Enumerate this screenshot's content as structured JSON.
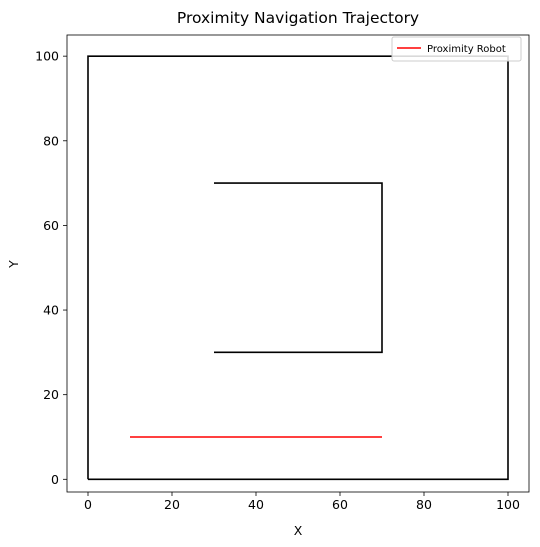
{
  "chart_data": {
    "type": "line",
    "title": "Proximity Navigation Trajectory",
    "xlabel": "X",
    "ylabel": "Y",
    "xlim": [
      -5,
      105
    ],
    "ylim": [
      -3,
      105
    ],
    "xticks": [
      0,
      20,
      40,
      60,
      80,
      100
    ],
    "yticks": [
      0,
      20,
      40,
      60,
      80,
      100
    ],
    "grid": false,
    "legend_position": "top-right",
    "obstacles": [
      {
        "color": "#000000",
        "points": [
          [
            0,
            0
          ],
          [
            100,
            0
          ],
          [
            100,
            100
          ],
          [
            0,
            100
          ],
          [
            0,
            0
          ]
        ]
      },
      {
        "color": "#000000",
        "points": [
          [
            30,
            70
          ],
          [
            70,
            70
          ],
          [
            70,
            30
          ],
          [
            30,
            30
          ]
        ]
      }
    ],
    "series": [
      {
        "name": "Proximity Robot",
        "color": "#ff0000",
        "x": [
          10,
          70
        ],
        "y": [
          10,
          10
        ]
      }
    ]
  }
}
